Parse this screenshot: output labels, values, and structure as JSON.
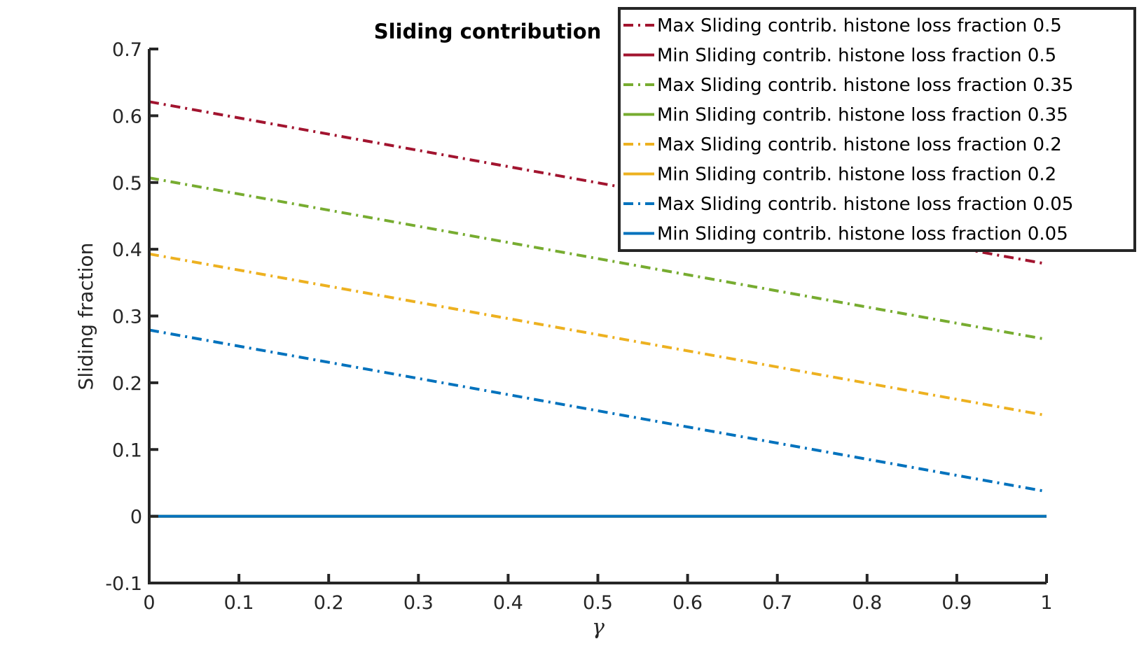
{
  "chart_data": {
    "type": "line",
    "title": "Sliding contribution",
    "xlabel": "γ",
    "ylabel": "Sliding fraction",
    "xlim": [
      0,
      1
    ],
    "ylim": [
      -0.1,
      0.7
    ],
    "xticks": [
      0,
      0.1,
      0.2,
      0.3,
      0.4,
      0.5,
      0.6,
      0.7,
      0.8,
      0.9,
      1
    ],
    "xtick_labels": [
      "0",
      "0.1",
      "0.2",
      "0.3",
      "0.4",
      "0.5",
      "0.6",
      "0.7",
      "0.8",
      "0.9",
      "1"
    ],
    "yticks": [
      -0.1,
      0,
      0.1,
      0.2,
      0.3,
      0.4,
      0.5,
      0.6,
      0.7
    ],
    "ytick_labels": [
      "-0.1",
      "0",
      "0.1",
      "0.2",
      "0.3",
      "0.4",
      "0.5",
      "0.6",
      "0.7"
    ],
    "grid": false,
    "legend_position": "top-right",
    "series": [
      {
        "name": "Max Sliding contrib. histone loss fraction 0.5",
        "style": "dashdot",
        "color": "#A2142F",
        "x": [
          0,
          1
        ],
        "y": [
          0.621,
          0.378
        ]
      },
      {
        "name": "Min Sliding contrib. histone loss fraction 0.5",
        "style": "solid",
        "color": "#A2142F",
        "x": [
          0,
          1
        ],
        "y": [
          0,
          0
        ]
      },
      {
        "name": "Max Sliding contrib. histone loss fraction 0.35",
        "style": "dashdot",
        "color": "#77AC30",
        "x": [
          0,
          1
        ],
        "y": [
          0.507,
          0.265
        ]
      },
      {
        "name": "Min Sliding contrib. histone loss fraction 0.35",
        "style": "solid",
        "color": "#77AC30",
        "x": [
          0,
          1
        ],
        "y": [
          0,
          0
        ]
      },
      {
        "name": "Max Sliding contrib. histone loss fraction 0.2",
        "style": "dashdot",
        "color": "#EDB120",
        "x": [
          0,
          1
        ],
        "y": [
          0.393,
          0.151
        ]
      },
      {
        "name": "Min Sliding contrib. histone loss fraction 0.2",
        "style": "solid",
        "color": "#EDB120",
        "x": [
          0,
          1
        ],
        "y": [
          0,
          0
        ]
      },
      {
        "name": "Max Sliding contrib. histone loss fraction 0.05",
        "style": "dashdot",
        "color": "#0072BD",
        "x": [
          0,
          1
        ],
        "y": [
          0.279,
          0.037
        ]
      },
      {
        "name": "Min Sliding contrib. histone loss fraction 0.05",
        "style": "solid",
        "color": "#0072BD",
        "x": [
          0,
          1
        ],
        "y": [
          0,
          0
        ]
      }
    ]
  }
}
